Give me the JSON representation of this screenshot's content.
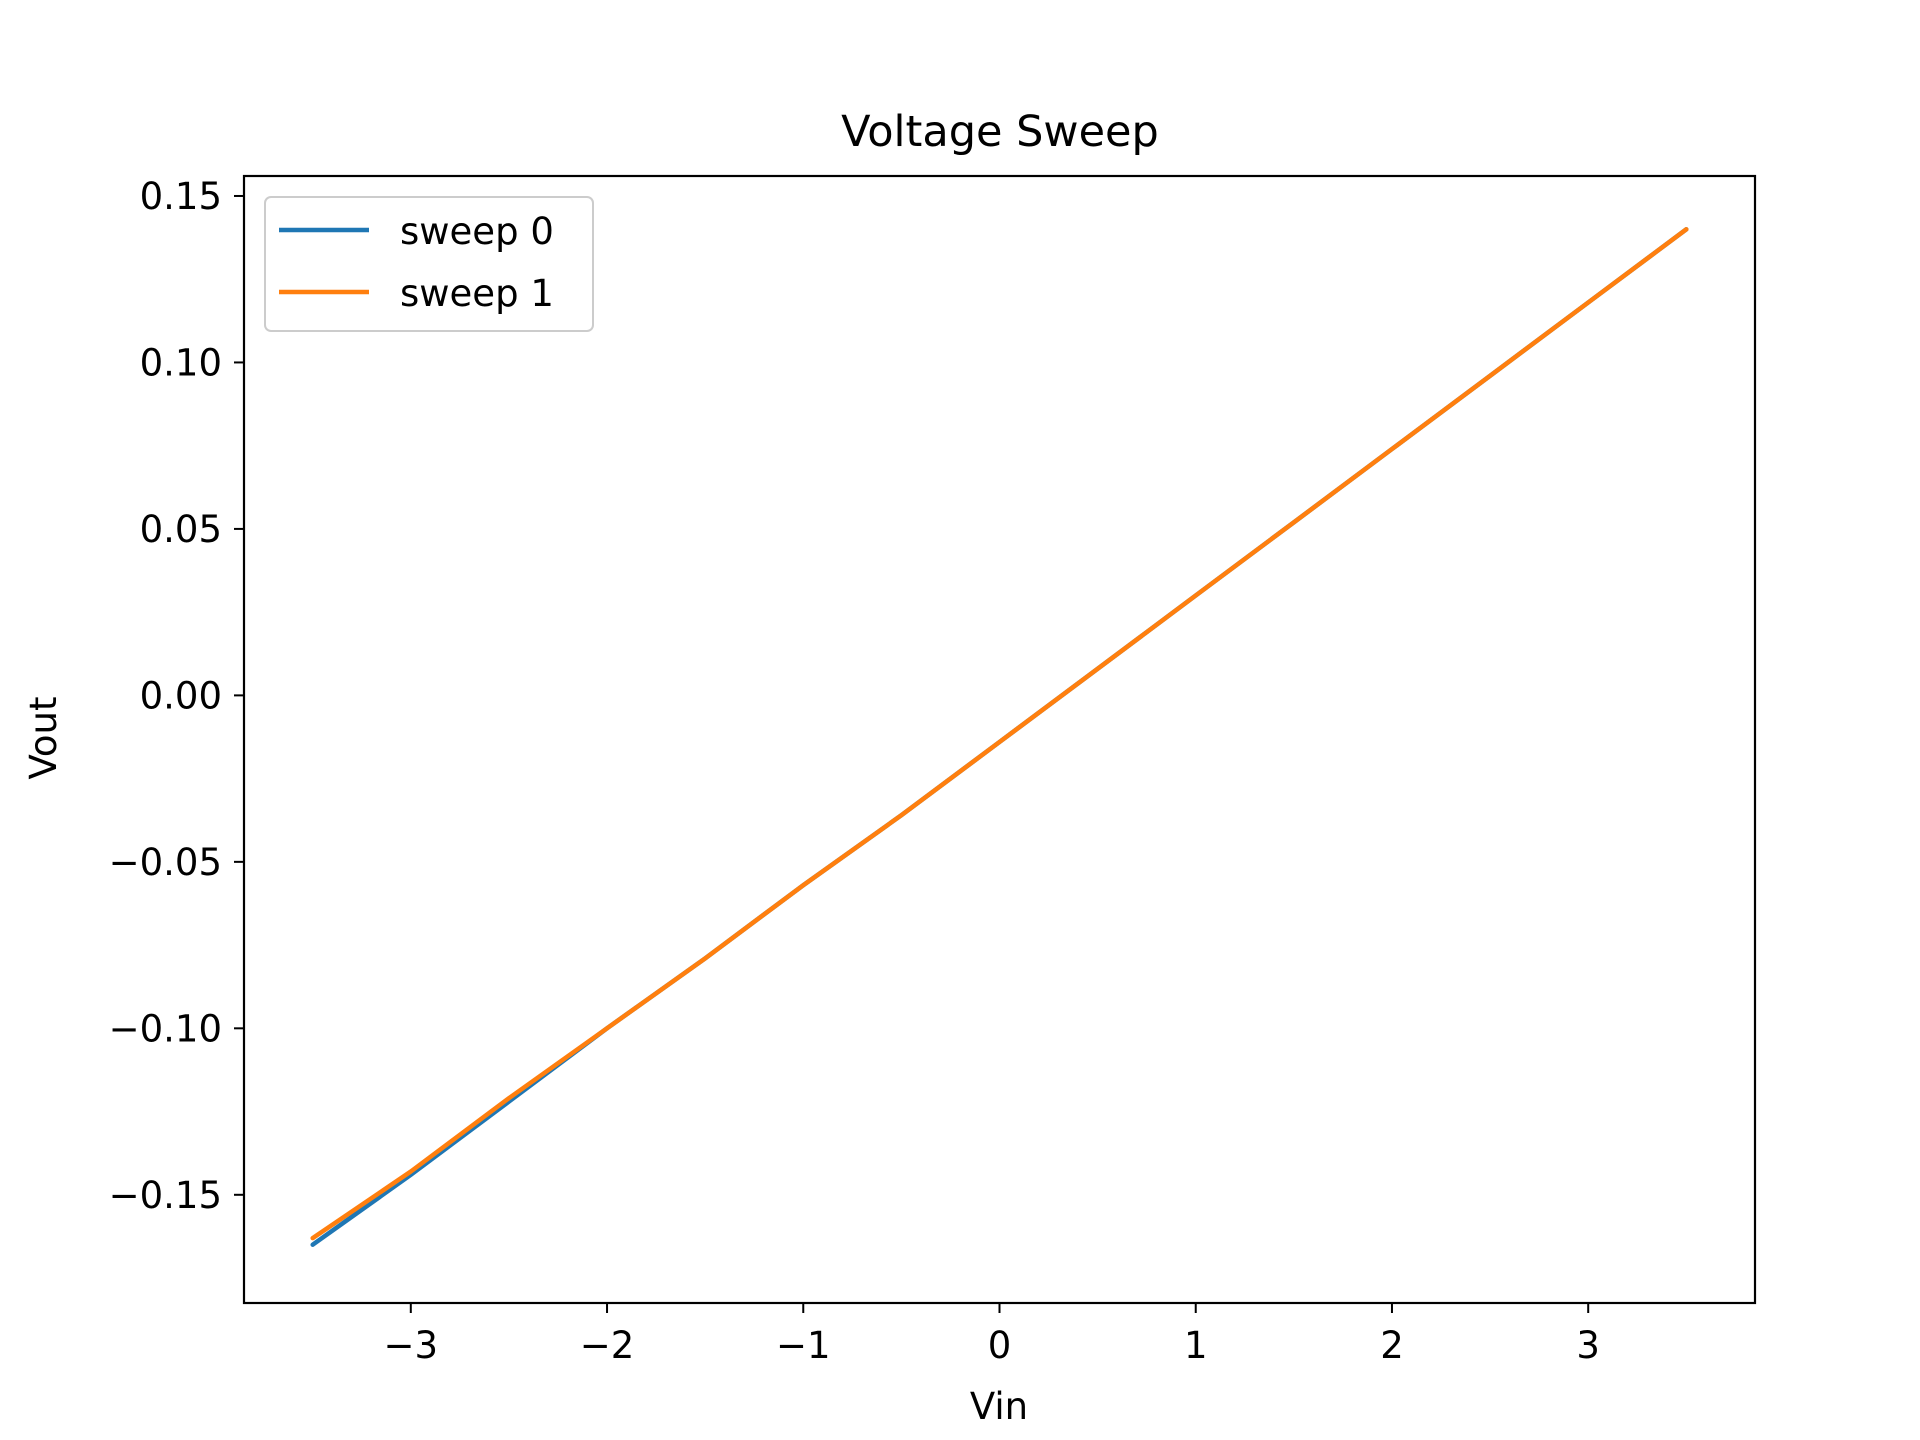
{
  "chart_data": {
    "type": "line",
    "title": "Voltage Sweep",
    "xlabel": "Vin",
    "ylabel": "Vout",
    "xlim": [
      -3.85,
      3.85
    ],
    "ylim": [
      -0.1825,
      0.156
    ],
    "xticks": [
      -3,
      -2,
      -1,
      0,
      1,
      2,
      3
    ],
    "xtick_labels": [
      "−3",
      "−2",
      "−1",
      "0",
      "1",
      "2",
      "3"
    ],
    "yticks": [
      -0.15,
      -0.1,
      -0.05,
      0.0,
      0.05,
      0.1,
      0.15
    ],
    "ytick_labels": [
      "−0.15",
      "−0.10",
      "−0.05",
      "0.00",
      "0.05",
      "0.10",
      "0.15"
    ],
    "grid": false,
    "legend_position": "top-left",
    "series": [
      {
        "name": "sweep 0",
        "color": "#1f77b4",
        "x": [
          -3.5,
          -3.0,
          -2.5,
          -2.0,
          -1.5,
          -1.0,
          -0.5,
          0.0,
          0.5,
          1.0,
          1.5,
          2.0,
          2.5,
          3.0,
          3.5
        ],
        "y": [
          -0.165,
          -0.144,
          -0.122,
          -0.1,
          -0.079,
          -0.057,
          -0.036,
          -0.014,
          0.008,
          0.03,
          0.052,
          0.074,
          0.096,
          0.118,
          0.14
        ]
      },
      {
        "name": "sweep 1",
        "color": "#ff7f0e",
        "x": [
          -3.5,
          -3.0,
          -2.5,
          -2.0,
          -1.5,
          -1.0,
          -0.5,
          0.0,
          0.5,
          1.0,
          1.5,
          2.0,
          2.5,
          3.0,
          3.5
        ],
        "y": [
          -0.163,
          -0.143,
          -0.121,
          -0.1,
          -0.079,
          -0.057,
          -0.036,
          -0.014,
          0.008,
          0.03,
          0.052,
          0.074,
          0.096,
          0.118,
          0.14
        ]
      }
    ]
  }
}
